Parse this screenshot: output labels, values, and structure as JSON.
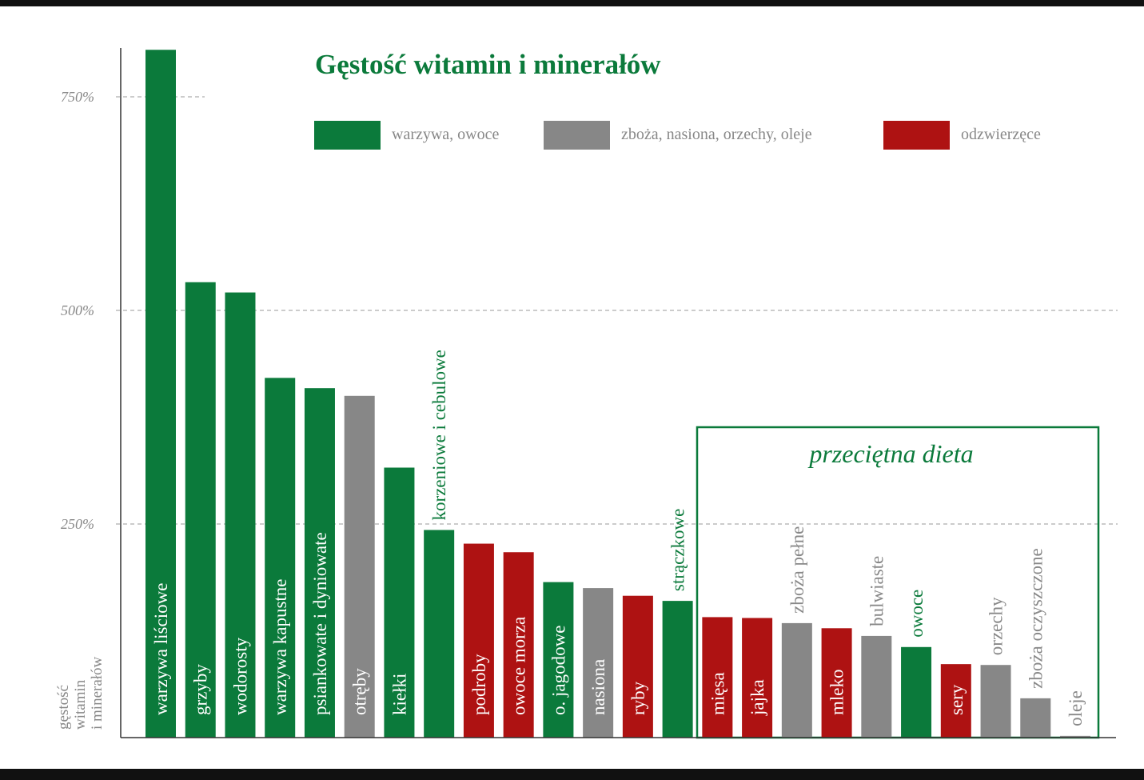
{
  "chart_data": {
    "type": "bar",
    "title": "Gęstość witamin i minerałów",
    "ylabel": [
      "gęstość",
      "witamin",
      "i minerałów"
    ],
    "ylim": [
      0,
      810
    ],
    "yticks": [
      250,
      500,
      750
    ],
    "ytick_labels": [
      "250%",
      "500%",
      "750%"
    ],
    "grid": "dashed horizontal at ticks",
    "legend_position": "top",
    "groups": [
      {
        "key": "veg",
        "name": "warzywa, owoce",
        "color": "#0b7a3b"
      },
      {
        "key": "grain",
        "name": "zboża, nasiona, orzechy, oleje",
        "color": "#878787"
      },
      {
        "key": "animal",
        "name": "odzwierzęce",
        "color": "#ae1212"
      }
    ],
    "highlight_box": {
      "label": "przeciętna dieta",
      "from_category": "mięsa",
      "to_category": "oleje",
      "color": "#0b7a3b"
    },
    "bars": [
      {
        "label": "warzywa liściowe",
        "value": 805,
        "group": "veg",
        "label_position": "inside"
      },
      {
        "label": "grzyby",
        "value": 533,
        "group": "veg",
        "label_position": "inside"
      },
      {
        "label": "wodorosty",
        "value": 521,
        "group": "veg",
        "label_position": "inside"
      },
      {
        "label": "warzywa kapustne",
        "value": 421,
        "group": "veg",
        "label_position": "inside"
      },
      {
        "label": "psiankowate i dyniowate",
        "value": 409,
        "group": "veg",
        "label_position": "inside"
      },
      {
        "label": "otręby",
        "value": 400,
        "group": "grain",
        "label_position": "inside"
      },
      {
        "label": "kiełki",
        "value": 316,
        "group": "veg",
        "label_position": "inside"
      },
      {
        "label": "korzeniowe i cebulowe",
        "value": 243,
        "group": "veg",
        "label_position": "above"
      },
      {
        "label": "podroby",
        "value": 227,
        "group": "animal",
        "label_position": "inside"
      },
      {
        "label": "owoce morza",
        "value": 217,
        "group": "animal",
        "label_position": "inside"
      },
      {
        "label": "o. jagodowe",
        "value": 182,
        "group": "veg",
        "label_position": "inside"
      },
      {
        "label": "nasiona",
        "value": 175,
        "group": "grain",
        "label_position": "inside"
      },
      {
        "label": "ryby",
        "value": 166,
        "group": "animal",
        "label_position": "inside"
      },
      {
        "label": "strączkowe",
        "value": 160,
        "group": "veg",
        "label_position": "above"
      },
      {
        "label": "mięsa",
        "value": 141,
        "group": "animal",
        "label_position": "inside"
      },
      {
        "label": "jajka",
        "value": 140,
        "group": "animal",
        "label_position": "inside"
      },
      {
        "label": "zboża pełne",
        "value": 134,
        "group": "grain",
        "label_position": "above"
      },
      {
        "label": "mleko",
        "value": 128,
        "group": "animal",
        "label_position": "inside"
      },
      {
        "label": "bulwiaste",
        "value": 119,
        "group": "grain",
        "label_position": "above"
      },
      {
        "label": "owoce",
        "value": 106,
        "group": "veg",
        "label_position": "above"
      },
      {
        "label": "sery",
        "value": 86,
        "group": "animal",
        "label_position": "inside"
      },
      {
        "label": "orzechy",
        "value": 85,
        "group": "grain",
        "label_position": "above"
      },
      {
        "label": "zboża oczyszczone",
        "value": 46,
        "group": "grain",
        "label_position": "above"
      },
      {
        "label": "oleje",
        "value": 2,
        "group": "grain",
        "label_position": "above"
      }
    ]
  }
}
